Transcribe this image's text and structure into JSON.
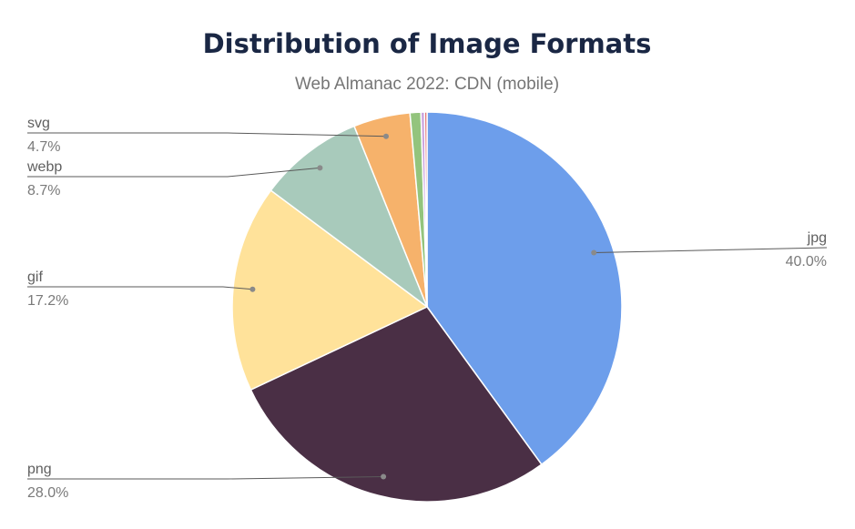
{
  "chart_data": {
    "type": "pie",
    "title": "Distribution of Image Formats",
    "subtitle": "Web Almanac 2022: CDN (mobile)",
    "slices": [
      {
        "label": "jpg",
        "value": 40.0,
        "display": "40.0%",
        "color": "#6d9eeb",
        "show_label": true
      },
      {
        "label": "png",
        "value": 28.0,
        "display": "28.0%",
        "color": "#4a2f45",
        "show_label": true
      },
      {
        "label": "gif",
        "value": 17.2,
        "display": "17.2%",
        "color": "#ffe29a",
        "show_label": true
      },
      {
        "label": "webp",
        "value": 8.7,
        "display": "8.7%",
        "color": "#a8cabb",
        "show_label": true
      },
      {
        "label": "svg",
        "value": 4.7,
        "display": "4.7%",
        "color": "#f6b26b",
        "show_label": true
      },
      {
        "label": "",
        "value": 0.9,
        "display": "",
        "color": "#93c47d",
        "show_label": false
      },
      {
        "label": "",
        "value": 0.3,
        "display": "",
        "color": "#c9a0dc",
        "show_label": false
      },
      {
        "label": "",
        "value": 0.2,
        "display": "",
        "color": "#e06666",
        "show_label": false
      }
    ]
  }
}
